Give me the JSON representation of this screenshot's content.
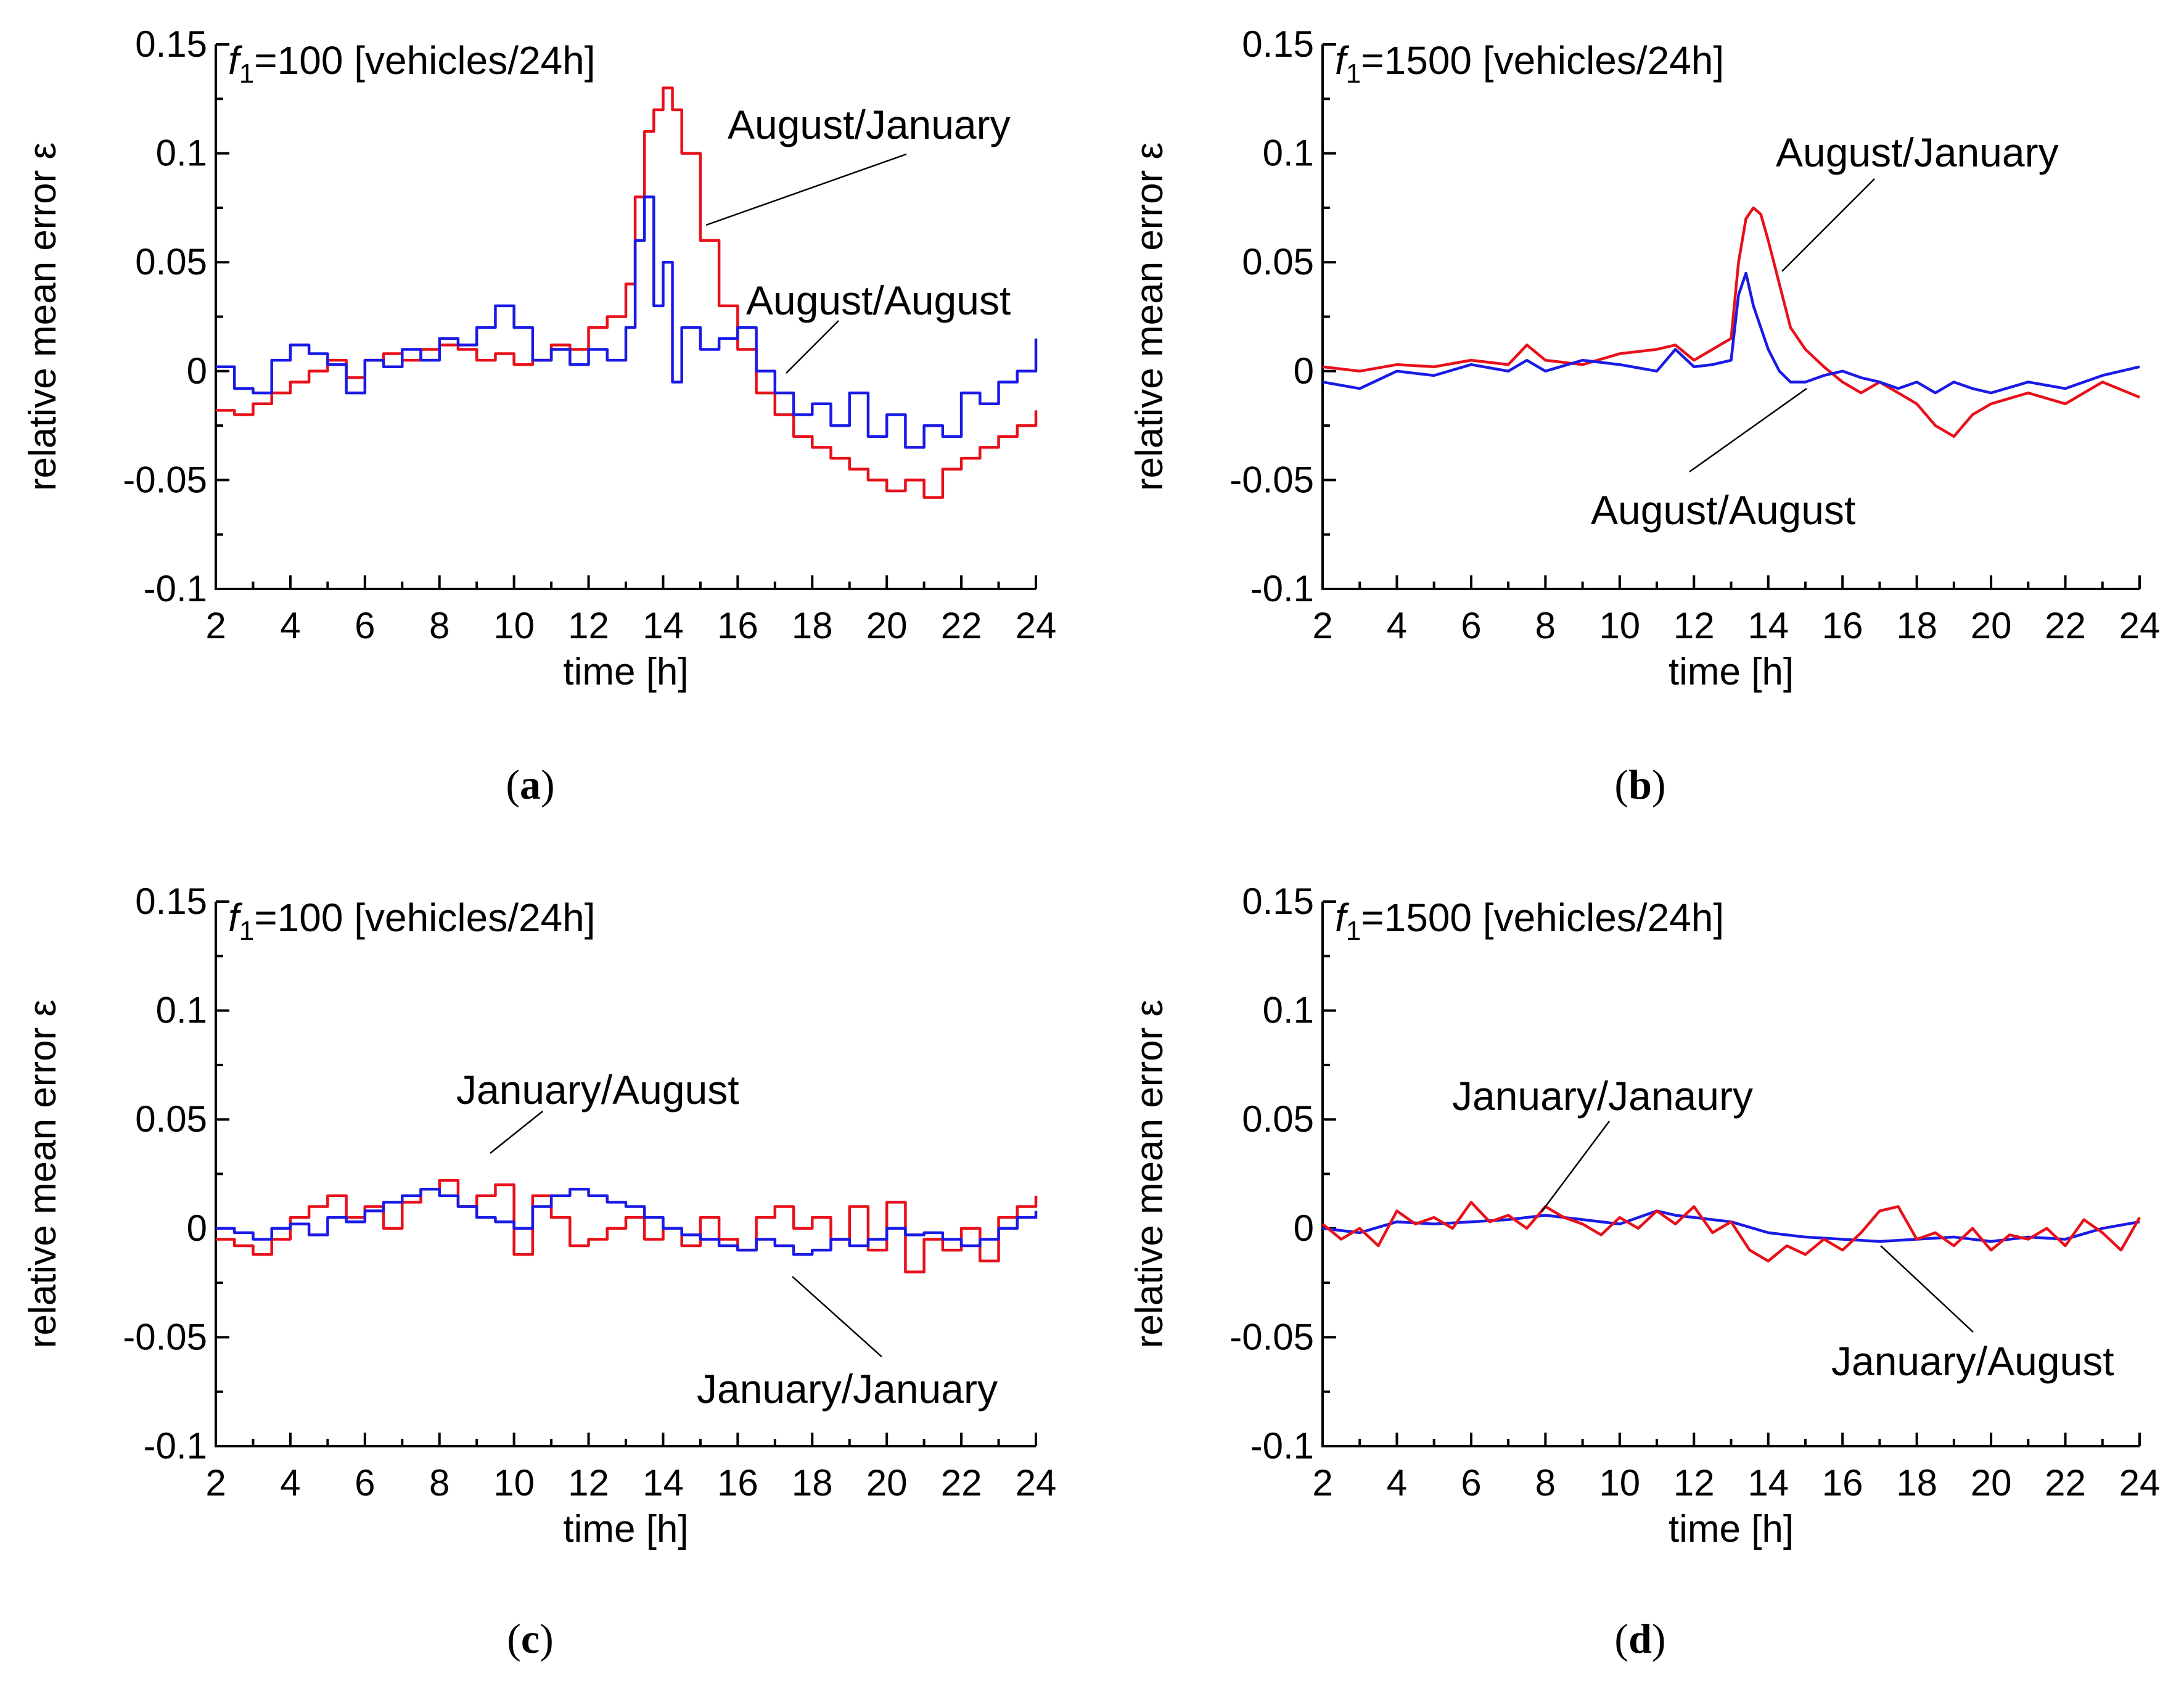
{
  "colors": {
    "red": "#e8101a",
    "blue": "#1a1ae6"
  },
  "chart_data": [
    {
      "type": "line",
      "id": "a",
      "caption": "a",
      "title_italic": "f",
      "title_sub": "1",
      "title_rest": "=100 [vehicles/24h]",
      "xlabel": "time [h]",
      "ylabel": "relative mean error ε",
      "xlim": [
        2,
        24
      ],
      "ylim": [
        -0.1,
        0.15
      ],
      "xticks": [
        "2",
        "4",
        "6",
        "8",
        "10",
        "12",
        "14",
        "16",
        "18",
        "20",
        "22",
        "24"
      ],
      "yticks": [
        "-0.1",
        "-0.05",
        "0",
        "0.05",
        "0.1",
        "0.15"
      ],
      "style": "step",
      "series": [
        {
          "name": "August/January",
          "color": "#e8101a",
          "x": [
            2,
            2.5,
            3,
            3.5,
            4,
            4.5,
            5,
            5.5,
            6,
            6.5,
            7,
            7.5,
            8,
            8.5,
            9,
            9.5,
            10,
            10.5,
            11,
            11.5,
            12,
            12.5,
            13,
            13.25,
            13.5,
            13.75,
            14,
            14.25,
            14.5,
            15,
            15.5,
            16,
            16.5,
            17,
            17.5,
            18,
            18.5,
            19,
            19.5,
            20,
            20.5,
            21,
            21.5,
            22,
            22.5,
            23,
            23.5,
            24
          ],
          "y": [
            -0.018,
            -0.02,
            -0.015,
            -0.01,
            -0.005,
            0,
            0.005,
            -0.003,
            0.005,
            0.008,
            0.005,
            0.01,
            0.012,
            0.01,
            0.005,
            0.008,
            0.003,
            0.005,
            0.012,
            0.01,
            0.02,
            0.025,
            0.04,
            0.08,
            0.11,
            0.12,
            0.13,
            0.12,
            0.1,
            0.06,
            0.03,
            0.01,
            -0.01,
            -0.02,
            -0.03,
            -0.035,
            -0.04,
            -0.045,
            -0.05,
            -0.055,
            -0.05,
            -0.058,
            -0.045,
            -0.04,
            -0.035,
            -0.03,
            -0.025,
            -0.018
          ]
        },
        {
          "name": "August/August",
          "color": "#1a1ae6",
          "x": [
            2,
            2.5,
            3,
            3.5,
            4,
            4.5,
            5,
            5.5,
            6,
            6.5,
            7,
            7.5,
            8,
            8.5,
            9,
            9.5,
            10,
            10.5,
            11,
            11.5,
            12,
            12.5,
            13,
            13.25,
            13.5,
            13.75,
            14,
            14.25,
            14.5,
            15,
            15.5,
            16,
            16.5,
            17,
            17.5,
            18,
            18.5,
            19,
            19.5,
            20,
            20.5,
            21,
            21.5,
            22,
            22.5,
            23,
            23.5,
            24
          ],
          "y": [
            0.002,
            -0.008,
            -0.01,
            0.005,
            0.012,
            0.008,
            0.003,
            -0.01,
            0.005,
            0.002,
            0.01,
            0.005,
            0.015,
            0.012,
            0.02,
            0.03,
            0.02,
            0.005,
            0.01,
            0.003,
            0.01,
            0.005,
            0.02,
            0.06,
            0.08,
            0.03,
            0.05,
            -0.005,
            0.02,
            0.01,
            0.015,
            0.02,
            0.0,
            -0.01,
            -0.02,
            -0.015,
            -0.025,
            -0.01,
            -0.03,
            -0.02,
            -0.035,
            -0.025,
            -0.03,
            -0.01,
            -0.015,
            -0.005,
            0.0,
            0.015
          ]
        }
      ],
      "annotations": [
        "August/January",
        "August/August"
      ]
    },
    {
      "type": "line",
      "id": "b",
      "caption": "b",
      "title_italic": "f",
      "title_sub": "1",
      "title_rest": "=1500 [vehicles/24h]",
      "xlabel": "time [h]",
      "ylabel": "relative mean error ε",
      "xlim": [
        2,
        24
      ],
      "ylim": [
        -0.1,
        0.15
      ],
      "xticks": [
        "2",
        "4",
        "6",
        "8",
        "10",
        "12",
        "14",
        "16",
        "18",
        "20",
        "22",
        "24"
      ],
      "yticks": [
        "-0.1",
        "-0.05",
        "0",
        "0.05",
        "0.1",
        "0.15"
      ],
      "style": "line",
      "series": [
        {
          "name": "August/January",
          "color": "#e8101a",
          "x": [
            2,
            3,
            4,
            5,
            6,
            7,
            7.5,
            8,
            9,
            10,
            11,
            11.5,
            12,
            12.5,
            13,
            13.2,
            13.4,
            13.6,
            13.8,
            14,
            14.3,
            14.6,
            15,
            15.5,
            16,
            16.5,
            17,
            17.5,
            18,
            18.5,
            19,
            19.5,
            20,
            21,
            22,
            23,
            24
          ],
          "y": [
            0.002,
            0.0,
            0.003,
            0.002,
            0.005,
            0.003,
            0.012,
            0.005,
            0.003,
            0.008,
            0.01,
            0.012,
            0.005,
            0.01,
            0.015,
            0.05,
            0.07,
            0.075,
            0.072,
            0.06,
            0.04,
            0.02,
            0.01,
            0.002,
            -0.005,
            -0.01,
            -0.005,
            -0.01,
            -0.015,
            -0.025,
            -0.03,
            -0.02,
            -0.015,
            -0.01,
            -0.015,
            -0.005,
            -0.012
          ]
        },
        {
          "name": "August/August",
          "color": "#1a1ae6",
          "x": [
            2,
            3,
            4,
            5,
            6,
            7,
            7.5,
            8,
            9,
            10,
            11,
            11.5,
            12,
            12.5,
            13,
            13.2,
            13.4,
            13.6,
            13.8,
            14,
            14.3,
            14.6,
            15,
            15.5,
            16,
            16.5,
            17,
            17.5,
            18,
            18.5,
            19,
            19.5,
            20,
            21,
            22,
            23,
            24
          ],
          "y": [
            -0.005,
            -0.008,
            0.0,
            -0.002,
            0.003,
            0.0,
            0.005,
            0.0,
            0.005,
            0.003,
            0.0,
            0.01,
            0.002,
            0.003,
            0.005,
            0.035,
            0.045,
            0.03,
            0.02,
            0.01,
            0.0,
            -0.005,
            -0.005,
            -0.002,
            0.0,
            -0.003,
            -0.005,
            -0.008,
            -0.005,
            -0.01,
            -0.005,
            -0.008,
            -0.01,
            -0.005,
            -0.008,
            -0.002,
            0.002
          ]
        }
      ],
      "annotations": [
        "August/January",
        "August/August"
      ]
    },
    {
      "type": "line",
      "id": "c",
      "caption": "c",
      "title_italic": "f",
      "title_sub": "1",
      "title_rest": "=100 [vehicles/24h]",
      "xlabel": "time [h]",
      "ylabel": "relative mean error ε",
      "xlim": [
        2,
        24
      ],
      "ylim": [
        -0.1,
        0.15
      ],
      "xticks": [
        "2",
        "4",
        "6",
        "8",
        "10",
        "12",
        "14",
        "16",
        "18",
        "20",
        "22",
        "24"
      ],
      "yticks": [
        "-0.1",
        "-0.05",
        "0",
        "0.05",
        "0.1",
        "0.15"
      ],
      "style": "step",
      "series": [
        {
          "name": "January/August",
          "color": "#e8101a",
          "x": [
            2,
            2.5,
            3,
            3.5,
            4,
            4.5,
            5,
            5.5,
            6,
            6.5,
            7,
            7.5,
            8,
            8.5,
            9,
            9.5,
            10,
            10.5,
            11,
            11.5,
            12,
            12.5,
            13,
            13.5,
            14,
            14.5,
            15,
            15.5,
            16,
            16.5,
            17,
            17.5,
            18,
            18.5,
            19,
            19.5,
            20,
            20.5,
            21,
            21.5,
            22,
            22.5,
            23,
            23.5,
            24
          ],
          "y": [
            -0.005,
            -0.008,
            -0.012,
            -0.005,
            0.005,
            0.01,
            0.015,
            0.005,
            0.01,
            0.0,
            0.012,
            0.018,
            0.022,
            0.01,
            0.015,
            0.02,
            -0.012,
            0.015,
            0.005,
            -0.008,
            -0.005,
            0.0,
            0.005,
            -0.005,
            0.0,
            -0.008,
            0.005,
            -0.005,
            -0.01,
            0.005,
            0.01,
            0.0,
            0.005,
            -0.005,
            0.01,
            -0.01,
            0.012,
            -0.02,
            -0.005,
            -0.01,
            0.0,
            -0.015,
            0.005,
            0.01,
            0.015
          ]
        },
        {
          "name": "January/January",
          "color": "#1a1ae6",
          "x": [
            2,
            2.5,
            3,
            3.5,
            4,
            4.5,
            5,
            5.5,
            6,
            6.5,
            7,
            7.5,
            8,
            8.5,
            9,
            9.5,
            10,
            10.5,
            11,
            11.5,
            12,
            12.5,
            13,
            13.5,
            14,
            14.5,
            15,
            15.5,
            16,
            16.5,
            17,
            17.5,
            18,
            18.5,
            19,
            19.5,
            20,
            20.5,
            21,
            21.5,
            22,
            22.5,
            23,
            23.5,
            24
          ],
          "y": [
            0.0,
            -0.002,
            -0.005,
            0.0,
            0.002,
            -0.003,
            0.005,
            0.003,
            0.008,
            0.012,
            0.015,
            0.018,
            0.015,
            0.01,
            0.005,
            0.003,
            0.0,
            0.01,
            0.015,
            0.018,
            0.015,
            0.012,
            0.01,
            0.005,
            0.0,
            -0.003,
            -0.005,
            -0.008,
            -0.01,
            -0.005,
            -0.008,
            -0.012,
            -0.01,
            -0.005,
            -0.008,
            -0.005,
            0.0,
            -0.003,
            -0.002,
            -0.005,
            -0.008,
            -0.005,
            0.0,
            0.005,
            0.008
          ]
        }
      ],
      "annotations": [
        "January/August",
        "January/January"
      ]
    },
    {
      "type": "line",
      "id": "d",
      "caption": "d",
      "title_italic": "f",
      "title_sub": "1",
      "title_rest": "=1500 [vehicles/24h]",
      "xlabel": "time [h]",
      "ylabel": "relative mean error ε",
      "xlim": [
        2,
        24
      ],
      "ylim": [
        -0.1,
        0.15
      ],
      "xticks": [
        "2",
        "4",
        "6",
        "8",
        "10",
        "12",
        "14",
        "16",
        "18",
        "20",
        "22",
        "24"
      ],
      "yticks": [
        "-0.1",
        "-0.05",
        "0",
        "0.05",
        "0.1",
        "0.15"
      ],
      "style": "line",
      "series": [
        {
          "name": "January/Janaury",
          "color": "#1a1ae6",
          "x": [
            2,
            3,
            4,
            5,
            6,
            7,
            8,
            9,
            10,
            11,
            11.5,
            12,
            13,
            14,
            15,
            16,
            17,
            18,
            19,
            20,
            21,
            22,
            23,
            24
          ],
          "y": [
            0.0,
            -0.002,
            0.003,
            0.002,
            0.003,
            0.004,
            0.006,
            0.004,
            0.002,
            0.008,
            0.006,
            0.005,
            0.003,
            -0.002,
            -0.004,
            -0.005,
            -0.006,
            -0.005,
            -0.004,
            -0.006,
            -0.004,
            -0.005,
            0.0,
            0.003
          ]
        },
        {
          "name": "January/August",
          "color": "#e8101a",
          "x": [
            2,
            2.5,
            3,
            3.5,
            4,
            4.5,
            5,
            5.5,
            6,
            6.5,
            7,
            7.5,
            8,
            8.5,
            9,
            9.5,
            10,
            10.5,
            11,
            11.5,
            12,
            12.5,
            13,
            13.5,
            14,
            14.5,
            15,
            15.5,
            16,
            16.5,
            17,
            17.5,
            18,
            18.5,
            19,
            19.5,
            20,
            20.5,
            21,
            21.5,
            22,
            22.5,
            23,
            23.5,
            24
          ],
          "y": [
            0.002,
            -0.005,
            0.0,
            -0.008,
            0.008,
            0.002,
            0.005,
            0.0,
            0.012,
            0.003,
            0.006,
            0.0,
            0.01,
            0.005,
            0.002,
            -0.003,
            0.005,
            0.0,
            0.008,
            0.002,
            0.01,
            -0.002,
            0.003,
            -0.01,
            -0.015,
            -0.008,
            -0.012,
            -0.005,
            -0.01,
            -0.002,
            0.008,
            0.01,
            -0.005,
            -0.002,
            -0.008,
            0.0,
            -0.01,
            -0.003,
            -0.005,
            0.0,
            -0.008,
            0.004,
            -0.002,
            -0.01,
            0.005
          ]
        }
      ],
      "annotations": [
        "January/Janaury",
        "January/August"
      ]
    }
  ]
}
